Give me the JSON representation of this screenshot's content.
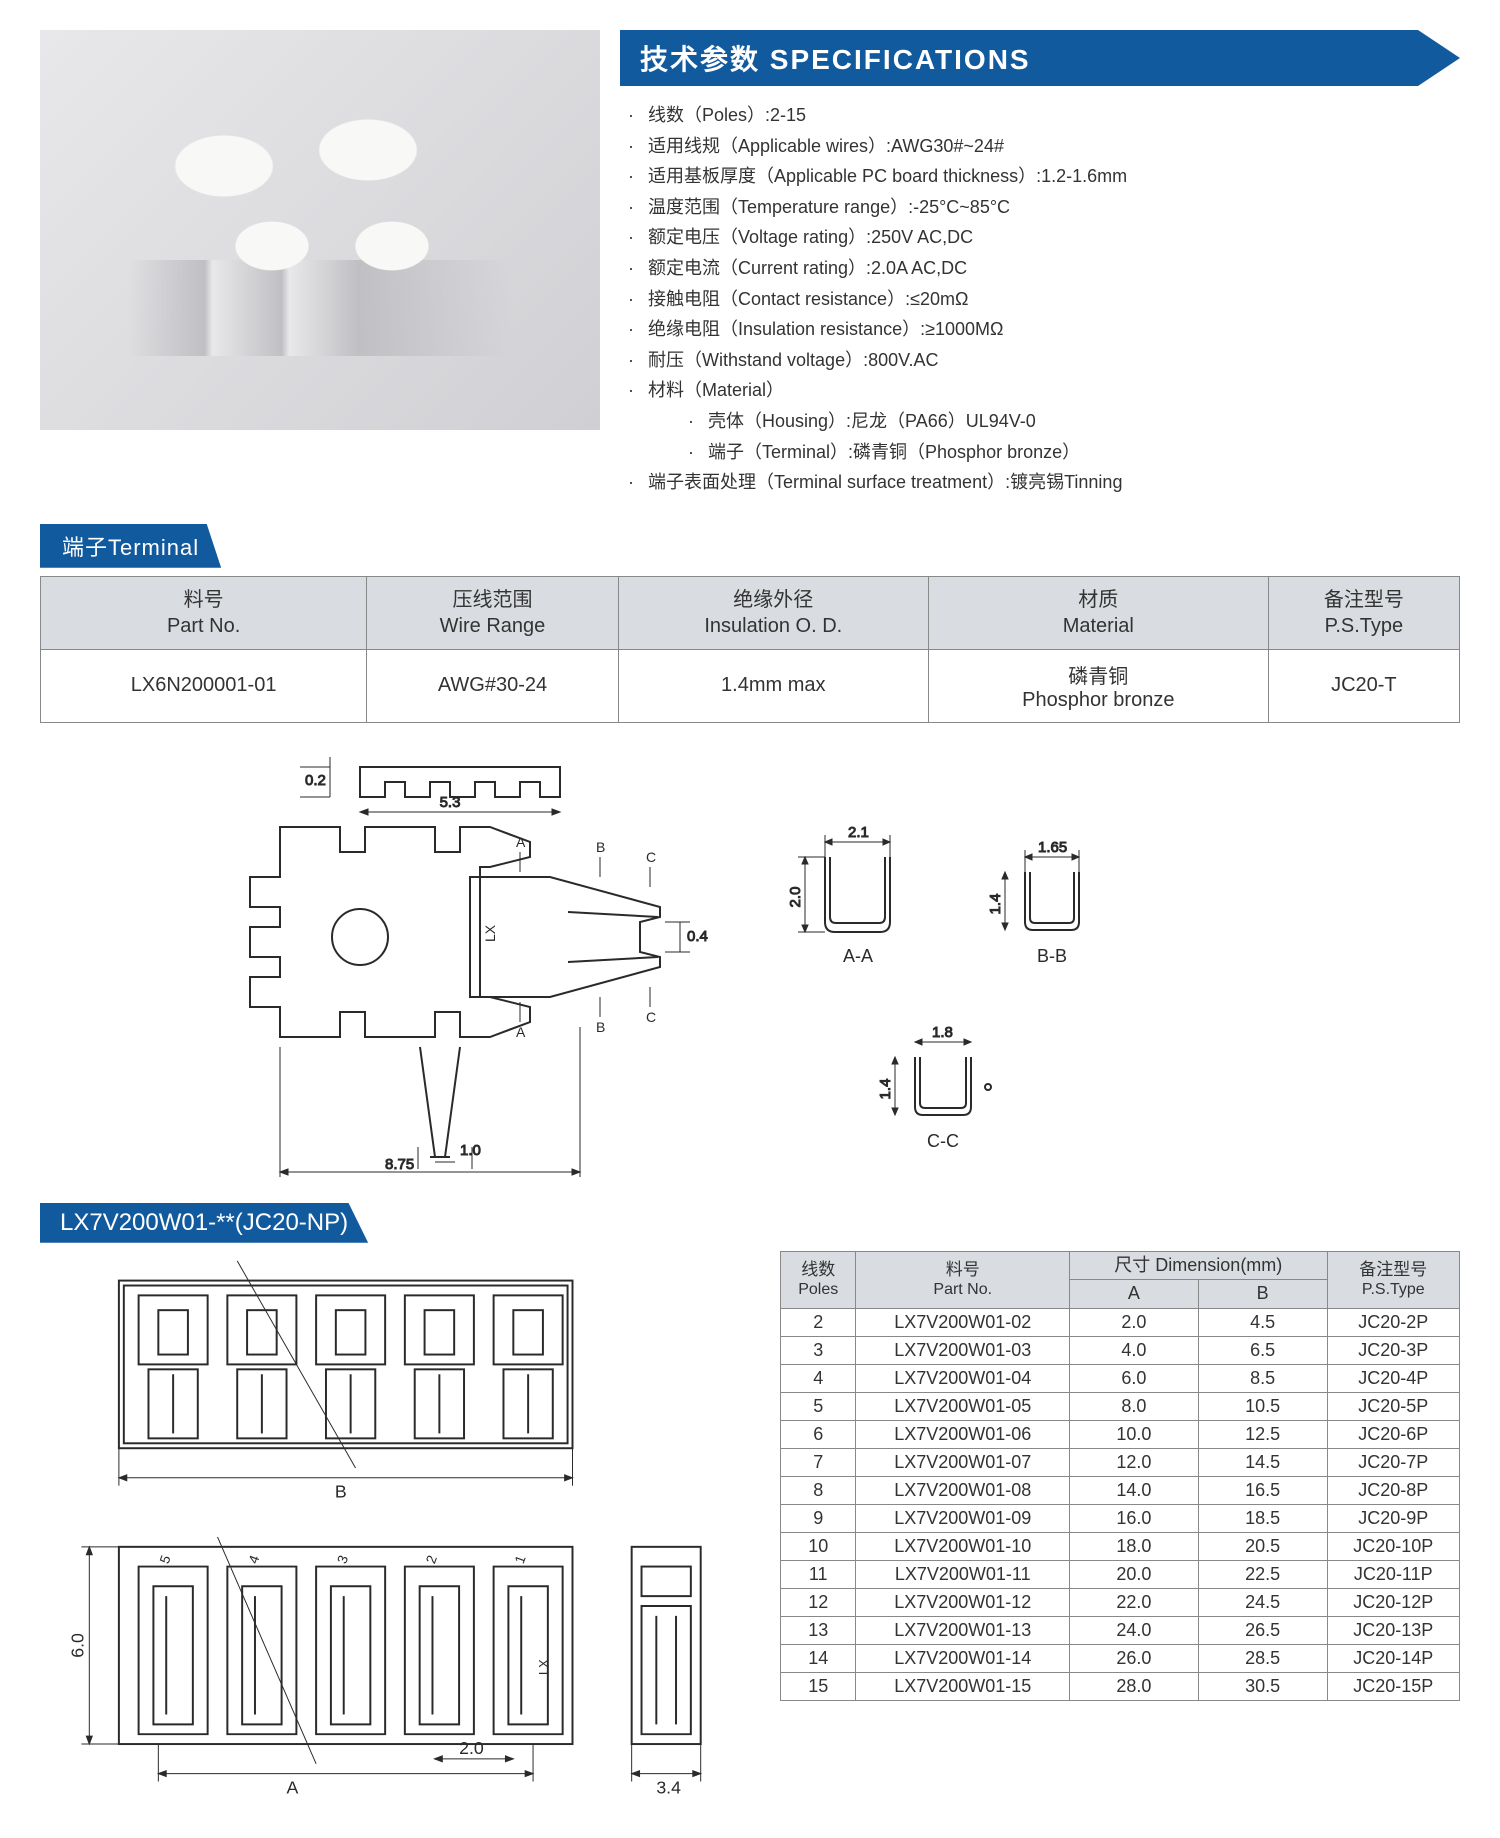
{
  "colors": {
    "banner_bg": "#125a9e",
    "banner_text": "#ffffff",
    "table_header_bg": "#d9dde1",
    "table_border": "#888888",
    "body_text": "#333333",
    "background": "#ffffff",
    "drawing_stroke": "#2a2a2a",
    "dim_stroke": "#2a2a2a"
  },
  "spec_header": "技术参数  SPECIFICATIONS",
  "specs": [
    {
      "label": "线数（Poles）:",
      "value": "2-15"
    },
    {
      "label": "适用线规（Applicable wires）:",
      "value": "AWG30#~24#"
    },
    {
      "label": "适用基板厚度（Applicable PC board thickness）:",
      "value": "1.2-1.6mm"
    },
    {
      "label": "温度范围（Temperature range）:",
      "value": "-25°C~85°C"
    },
    {
      "label": "额定电压（Voltage rating）:",
      "value": "250V AC,DC"
    },
    {
      "label": "额定电流（Current rating）:",
      "value": "2.0A AC,DC"
    },
    {
      "label": "接触电阻（Contact resistance）:",
      "value": "≤20mΩ"
    },
    {
      "label": "绝缘电阻（Insulation resistance）:",
      "value": "≥1000MΩ"
    },
    {
      "label": "耐压（Withstand voltage）:",
      "value": "800V.AC"
    },
    {
      "label": "材料（Material）",
      "value": ""
    }
  ],
  "material_sub": [
    {
      "label": "壳体（Housing）:",
      "value": "尼龙（PA66）UL94V-0"
    },
    {
      "label": "端子（Terminal）:",
      "value": "磷青铜（Phosphor bronze）"
    }
  ],
  "terminal_treatment": {
    "label": "端子表面处理（Terminal surface treatment）:",
    "value": "镀亮锡Tinning"
  },
  "terminal_tab": "端子Terminal",
  "terminal_table": {
    "headers": [
      {
        "cn": "料号",
        "en": "Part No."
      },
      {
        "cn": "压线范围",
        "en": "Wire Range"
      },
      {
        "cn": "绝缘外径",
        "en": "Insulation O. D."
      },
      {
        "cn": "材质",
        "en": "Material"
      },
      {
        "cn": "备注型号",
        "en": "P.S.Type"
      }
    ],
    "row": [
      "LX6N200001-01",
      "AWG#30-24",
      "1.4mm max",
      "磷青铜\nPhosphor bronze",
      "JC20-T"
    ]
  },
  "terminal_drawing": {
    "main": {
      "width": "8.75",
      "width_inner": "5.3",
      "tip": "1.0",
      "height_marker": "0.2",
      "side_marker": "0.4",
      "lx_text": "LX",
      "section_labels": [
        "A",
        "B",
        "C"
      ]
    },
    "section_AA": {
      "w": "2.1",
      "h": "2.0",
      "label": "A-A"
    },
    "section_BB": {
      "w": "1.65",
      "h": "1.4",
      "label": "B-B"
    },
    "section_CC": {
      "w": "1.8",
      "h": "1.4",
      "label": "C-C"
    }
  },
  "housing_banner": "LX7V200W01-**(JC20-NP)",
  "housing_drawing": {
    "width_label": "B",
    "pitch": "2.0",
    "height": "6.0",
    "tail_width": "3.4",
    "inner_label": "A",
    "lx": "LX",
    "pin_labels": [
      "5",
      "4",
      "3",
      "2",
      "1"
    ]
  },
  "dim_table": {
    "headers": {
      "poles": {
        "cn": "线数",
        "en": "Poles"
      },
      "partno": {
        "cn": "料号",
        "en": "Part No."
      },
      "dim": {
        "cn": "尺寸 Dimension(mm)",
        "a": "A",
        "b": "B"
      },
      "pstype": {
        "cn": "备注型号",
        "en": "P.S.Type"
      }
    },
    "rows": [
      {
        "poles": "2",
        "part": "LX7V200W01-02",
        "a": "2.0",
        "b": "4.5",
        "ps": "JC20-2P"
      },
      {
        "poles": "3",
        "part": "LX7V200W01-03",
        "a": "4.0",
        "b": "6.5",
        "ps": "JC20-3P"
      },
      {
        "poles": "4",
        "part": "LX7V200W01-04",
        "a": "6.0",
        "b": "8.5",
        "ps": "JC20-4P"
      },
      {
        "poles": "5",
        "part": "LX7V200W01-05",
        "a": "8.0",
        "b": "10.5",
        "ps": "JC20-5P"
      },
      {
        "poles": "6",
        "part": "LX7V200W01-06",
        "a": "10.0",
        "b": "12.5",
        "ps": "JC20-6P"
      },
      {
        "poles": "7",
        "part": "LX7V200W01-07",
        "a": "12.0",
        "b": "14.5",
        "ps": "JC20-7P"
      },
      {
        "poles": "8",
        "part": "LX7V200W01-08",
        "a": "14.0",
        "b": "16.5",
        "ps": "JC20-8P"
      },
      {
        "poles": "9",
        "part": "LX7V200W01-09",
        "a": "16.0",
        "b": "18.5",
        "ps": "JC20-9P"
      },
      {
        "poles": "10",
        "part": "LX7V200W01-10",
        "a": "18.0",
        "b": "20.5",
        "ps": "JC20-10P"
      },
      {
        "poles": "11",
        "part": "LX7V200W01-11",
        "a": "20.0",
        "b": "22.5",
        "ps": "JC20-11P"
      },
      {
        "poles": "12",
        "part": "LX7V200W01-12",
        "a": "22.0",
        "b": "24.5",
        "ps": "JC20-12P"
      },
      {
        "poles": "13",
        "part": "LX7V200W01-13",
        "a": "24.0",
        "b": "26.5",
        "ps": "JC20-13P"
      },
      {
        "poles": "14",
        "part": "LX7V200W01-14",
        "a": "26.0",
        "b": "28.5",
        "ps": "JC20-14P"
      },
      {
        "poles": "15",
        "part": "LX7V200W01-15",
        "a": "28.0",
        "b": "30.5",
        "ps": "JC20-15P"
      }
    ]
  }
}
